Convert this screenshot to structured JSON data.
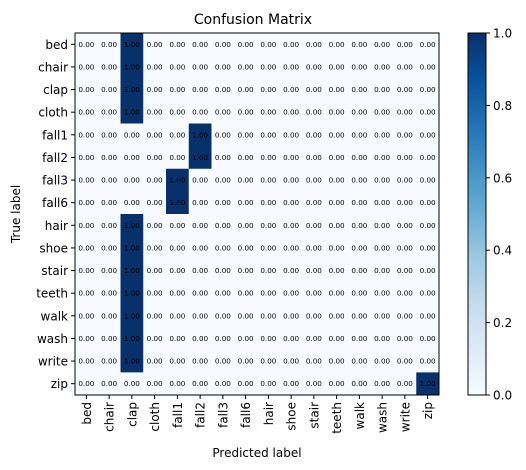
{
  "chart_data": {
    "type": "heatmap",
    "title": "Confusion Matrix",
    "xlabel": "Predicted label",
    "ylabel": "True label",
    "labels": [
      "bed",
      "chair",
      "clap",
      "cloth",
      "fall1",
      "fall2",
      "fall3",
      "fall6",
      "hair",
      "shoe",
      "stair",
      "teeth",
      "walk",
      "wash",
      "write",
      "zip"
    ],
    "matrix": [
      [
        0,
        0,
        1,
        0,
        0,
        0,
        0,
        0,
        0,
        0,
        0,
        0,
        0,
        0,
        0,
        0
      ],
      [
        0,
        0,
        1,
        0,
        0,
        0,
        0,
        0,
        0,
        0,
        0,
        0,
        0,
        0,
        0,
        0
      ],
      [
        0,
        0,
        1,
        0,
        0,
        0,
        0,
        0,
        0,
        0,
        0,
        0,
        0,
        0,
        0,
        0
      ],
      [
        0,
        0,
        1,
        0,
        0,
        0,
        0,
        0,
        0,
        0,
        0,
        0,
        0,
        0,
        0,
        0
      ],
      [
        0,
        0,
        0,
        0,
        0,
        1,
        0,
        0,
        0,
        0,
        0,
        0,
        0,
        0,
        0,
        0
      ],
      [
        0,
        0,
        0,
        0,
        0,
        1,
        0,
        0,
        0,
        0,
        0,
        0,
        0,
        0,
        0,
        0
      ],
      [
        0,
        0,
        0,
        0,
        1,
        0,
        0,
        0,
        0,
        0,
        0,
        0,
        0,
        0,
        0,
        0
      ],
      [
        0,
        0,
        0,
        0,
        1,
        0,
        0,
        0,
        0,
        0,
        0,
        0,
        0,
        0,
        0,
        0
      ],
      [
        0,
        0,
        1,
        0,
        0,
        0,
        0,
        0,
        0,
        0,
        0,
        0,
        0,
        0,
        0,
        0
      ],
      [
        0,
        0,
        1,
        0,
        0,
        0,
        0,
        0,
        0,
        0,
        0,
        0,
        0,
        0,
        0,
        0
      ],
      [
        0,
        0,
        1,
        0,
        0,
        0,
        0,
        0,
        0,
        0,
        0,
        0,
        0,
        0,
        0,
        0
      ],
      [
        0,
        0,
        1,
        0,
        0,
        0,
        0,
        0,
        0,
        0,
        0,
        0,
        0,
        0,
        0,
        0
      ],
      [
        0,
        0,
        1,
        0,
        0,
        0,
        0,
        0,
        0,
        0,
        0,
        0,
        0,
        0,
        0,
        0
      ],
      [
        0,
        0,
        1,
        0,
        0,
        0,
        0,
        0,
        0,
        0,
        0,
        0,
        0,
        0,
        0,
        0
      ],
      [
        0,
        0,
        1,
        0,
        0,
        0,
        0,
        0,
        0,
        0,
        0,
        0,
        0,
        0,
        0,
        0
      ],
      [
        0,
        0,
        0,
        0,
        0,
        0,
        0,
        0,
        0,
        0,
        0,
        0,
        0,
        0,
        0,
        1
      ]
    ],
    "value_format": "0.00",
    "colormap": "Blues",
    "colorbar": {
      "range": [
        0.0,
        1.0
      ],
      "ticks": [
        "0.0",
        "0.2",
        "0.4",
        "0.6",
        "0.8",
        "1.0"
      ]
    },
    "grid": false
  }
}
